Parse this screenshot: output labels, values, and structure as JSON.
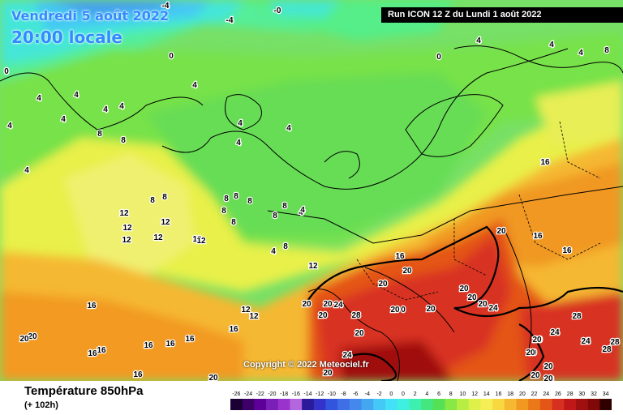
{
  "header": {
    "date": "Vendredi 5 août 2022",
    "time": "20:00 locale",
    "run": "Run ICON 12 Z du Lundi 1 août 2022"
  },
  "footer": {
    "variable": "Température 850hPa",
    "lead": "(+ 102h)",
    "copyright": "Copyright © 2022 Meteociel.fr"
  },
  "legend": {
    "labels": [
      "-26",
      "-24",
      "-22",
      "-20",
      "-18",
      "-16",
      "-14",
      "-12",
      "-10",
      "-8",
      "-6",
      "-4",
      "-2",
      "0",
      "0",
      "2",
      "4",
      "6",
      "8",
      "10",
      "12",
      "14",
      "16",
      "18",
      "20",
      "22",
      "24",
      "26",
      "28",
      "30",
      "32",
      "34"
    ],
    "colors": [
      "#1a0033",
      "#3d0066",
      "#5c0099",
      "#7a1fb8",
      "#9933cc",
      "#b366dd",
      "#2b1a99",
      "#3333cc",
      "#3355dd",
      "#3f6fe6",
      "#4488ee",
      "#44a8f0",
      "#44c8f5",
      "#44e0f8",
      "#3ef0e0",
      "#3ef0b0",
      "#44e680",
      "#55e055",
      "#88e844",
      "#b8ee44",
      "#e0f04a",
      "#f5ee55",
      "#f8d840",
      "#f5b830",
      "#f09820",
      "#ea7818",
      "#e45518",
      "#d83020",
      "#c01818",
      "#a01010",
      "#800808",
      "#300000"
    ]
  },
  "map_labels": [
    {
      "t": "-4"
    },
    {
      "t": "-4"
    },
    {
      "t": "-0"
    },
    {
      "t": "0"
    },
    {
      "t": "0"
    },
    {
      "t": "0"
    },
    {
      "t": "4"
    },
    {
      "t": "4"
    },
    {
      "t": "8"
    },
    {
      "t": "4"
    },
    {
      "t": "4"
    },
    {
      "t": "4"
    },
    {
      "t": "4"
    },
    {
      "t": "4"
    },
    {
      "t": "4"
    },
    {
      "t": "4"
    },
    {
      "t": "4"
    },
    {
      "t": "4"
    },
    {
      "t": "8"
    },
    {
      "t": "8"
    },
    {
      "t": "4"
    },
    {
      "t": "4"
    },
    {
      "t": "4"
    },
    {
      "t": "16"
    },
    {
      "t": "8"
    },
    {
      "t": "8"
    },
    {
      "t": "8"
    },
    {
      "t": "8"
    },
    {
      "t": "8"
    },
    {
      "t": "8"
    },
    {
      "t": "8"
    },
    {
      "t": "12"
    },
    {
      "t": "12"
    },
    {
      "t": "12"
    },
    {
      "t": "12"
    },
    {
      "t": "12"
    },
    {
      "t": "8"
    },
    {
      "t": "8"
    },
    {
      "t": "12"
    },
    {
      "t": "12"
    },
    {
      "t": "8"
    },
    {
      "t": "4"
    },
    {
      "t": "4"
    },
    {
      "t": "4"
    },
    {
      "t": "12"
    },
    {
      "t": "20"
    },
    {
      "t": "16"
    },
    {
      "t": "16"
    },
    {
      "t": "16"
    },
    {
      "t": "20"
    },
    {
      "t": "20"
    },
    {
      "t": "16"
    },
    {
      "t": "12"
    },
    {
      "t": "12"
    },
    {
      "t": "16"
    },
    {
      "t": "20"
    },
    {
      "t": "16"
    },
    {
      "t": "16"
    },
    {
      "t": "16"
    },
    {
      "t": "16"
    },
    {
      "t": "16"
    },
    {
      "t": "16"
    },
    {
      "t": "20"
    },
    {
      "t": "20"
    },
    {
      "t": "24"
    },
    {
      "t": "20"
    },
    {
      "t": "28"
    },
    {
      "t": "20"
    },
    {
      "t": "20"
    },
    {
      "t": "24"
    },
    {
      "t": "20"
    },
    {
      "t": "20"
    },
    {
      "t": "0"
    },
    {
      "t": "20"
    },
    {
      "t": "20"
    },
    {
      "t": "20"
    },
    {
      "t": "20"
    },
    {
      "t": "20"
    },
    {
      "t": "28"
    },
    {
      "t": "24"
    },
    {
      "t": "20"
    },
    {
      "t": "24"
    },
    {
      "t": "28"
    },
    {
      "t": "28"
    },
    {
      "t": "20"
    },
    {
      "t": "20"
    },
    {
      "t": "20"
    },
    {
      "t": "20"
    },
    {
      "t": "28"
    },
    {
      "t": "24"
    },
    {
      "t": "28"
    },
    {
      "t": "20"
    },
    {
      "t": "20"
    }
  ]
}
